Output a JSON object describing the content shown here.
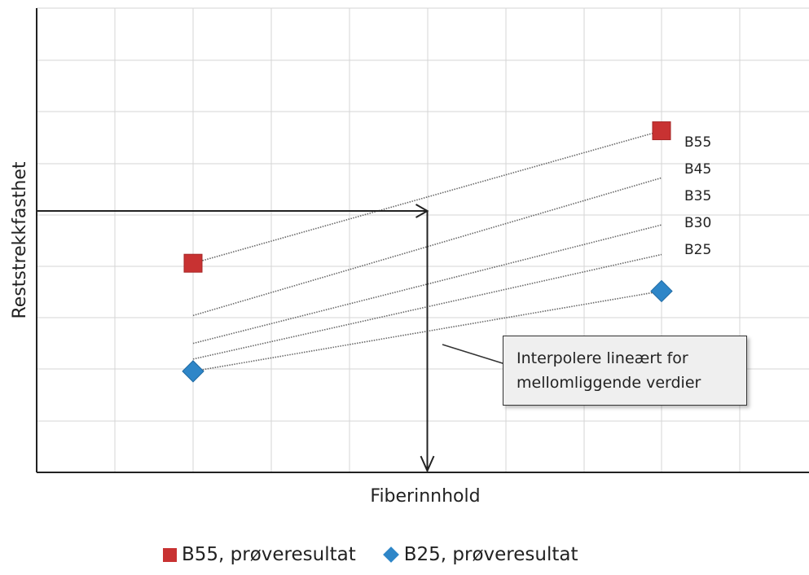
{
  "chart_data": {
    "type": "scatter",
    "xlabel": "Fiberinnhold",
    "ylabel": "Reststrekkfasthet",
    "grid": true,
    "lines": [
      {
        "name": "B55",
        "x": [
          0,
          1
        ],
        "y": [
          0.6,
          0.98
        ]
      },
      {
        "name": "B45",
        "x": [
          0,
          1
        ],
        "y": [
          0.45,
          0.845
        ]
      },
      {
        "name": "B35",
        "x": [
          0,
          1
        ],
        "y": [
          0.37,
          0.71
        ]
      },
      {
        "name": "B30",
        "x": [
          0,
          1
        ],
        "y": [
          0.325,
          0.625
        ]
      },
      {
        "name": "B25",
        "x": [
          0,
          1
        ],
        "y": [
          0.29,
          0.52
        ]
      }
    ],
    "points": [
      {
        "series": "B55, prøveresultat",
        "marker": "square",
        "color": "#c83232",
        "x": [
          0,
          1
        ],
        "y": [
          0.6,
          0.98
        ]
      },
      {
        "series": "B25, prøveresultat",
        "marker": "diamond",
        "color": "#2e86c8",
        "x": [
          0,
          1
        ],
        "y": [
          0.29,
          0.52
        ]
      }
    ],
    "reading": {
      "y": 0.75,
      "x": 0.5
    },
    "annotation": [
      "Interpolere lineært for",
      "mellomliggende verdier"
    ],
    "legend": [
      "B55, prøveresultat",
      "B25, prøveresultat"
    ],
    "legend_position": "bottom"
  }
}
